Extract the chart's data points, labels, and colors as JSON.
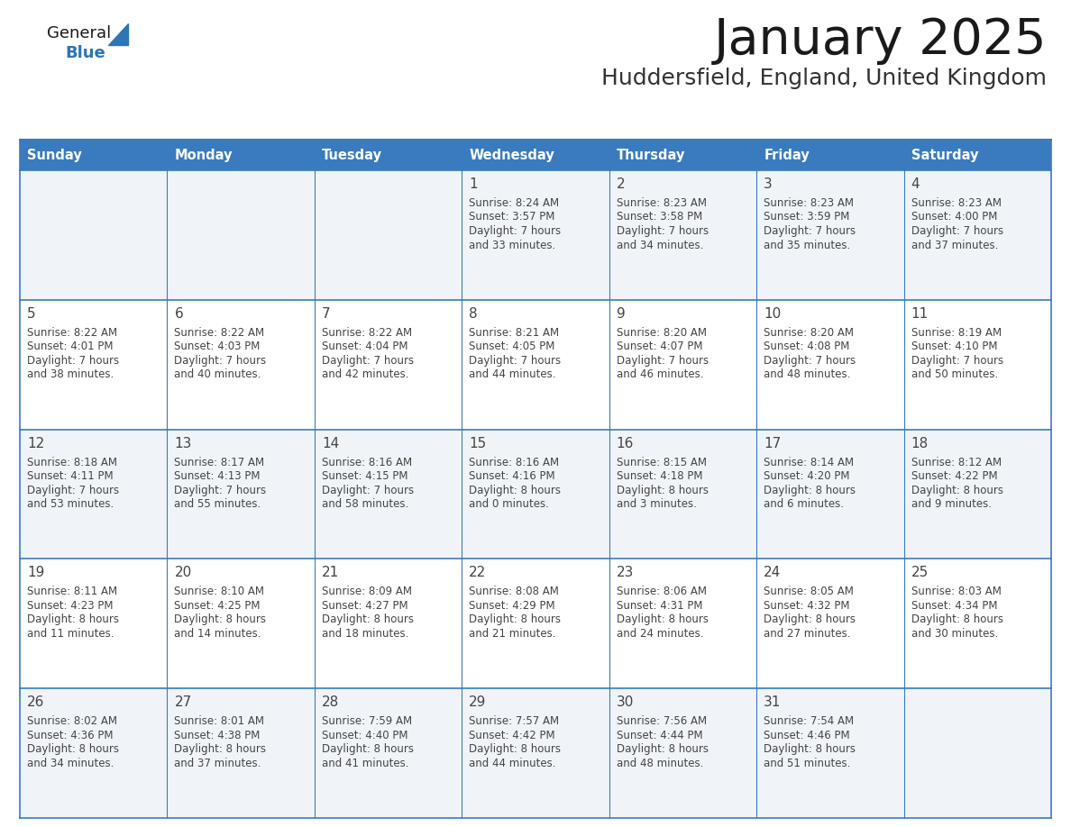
{
  "title": "January 2025",
  "subtitle": "Huddersfield, England, United Kingdom",
  "days_of_week": [
    "Sunday",
    "Monday",
    "Tuesday",
    "Wednesday",
    "Thursday",
    "Friday",
    "Saturday"
  ],
  "header_bg": "#3a7bbf",
  "header_text": "#FFFFFF",
  "row_bg_odd": "#FFFFFF",
  "row_bg_even": "#f0f4f8",
  "border_color": "#3a7bbf",
  "text_color": "#444444",
  "title_color": "#1a1a1a",
  "subtitle_color": "#333333",
  "logo_general_color": "#1a1a1a",
  "logo_blue_color": "#2E75B6",
  "logo_triangle_color": "#2E75B6",
  "calendar_data": [
    [
      null,
      null,
      null,
      {
        "day": 1,
        "sunrise": "8:24 AM",
        "sunset": "3:57 PM",
        "daylight_h": "7 hours",
        "daylight_m": "33 minutes."
      },
      {
        "day": 2,
        "sunrise": "8:23 AM",
        "sunset": "3:58 PM",
        "daylight_h": "7 hours",
        "daylight_m": "34 minutes."
      },
      {
        "day": 3,
        "sunrise": "8:23 AM",
        "sunset": "3:59 PM",
        "daylight_h": "7 hours",
        "daylight_m": "35 minutes."
      },
      {
        "day": 4,
        "sunrise": "8:23 AM",
        "sunset": "4:00 PM",
        "daylight_h": "7 hours",
        "daylight_m": "37 minutes."
      }
    ],
    [
      {
        "day": 5,
        "sunrise": "8:22 AM",
        "sunset": "4:01 PM",
        "daylight_h": "7 hours",
        "daylight_m": "38 minutes."
      },
      {
        "day": 6,
        "sunrise": "8:22 AM",
        "sunset": "4:03 PM",
        "daylight_h": "7 hours",
        "daylight_m": "40 minutes."
      },
      {
        "day": 7,
        "sunrise": "8:22 AM",
        "sunset": "4:04 PM",
        "daylight_h": "7 hours",
        "daylight_m": "42 minutes."
      },
      {
        "day": 8,
        "sunrise": "8:21 AM",
        "sunset": "4:05 PM",
        "daylight_h": "7 hours",
        "daylight_m": "44 minutes."
      },
      {
        "day": 9,
        "sunrise": "8:20 AM",
        "sunset": "4:07 PM",
        "daylight_h": "7 hours",
        "daylight_m": "46 minutes."
      },
      {
        "day": 10,
        "sunrise": "8:20 AM",
        "sunset": "4:08 PM",
        "daylight_h": "7 hours",
        "daylight_m": "48 minutes."
      },
      {
        "day": 11,
        "sunrise": "8:19 AM",
        "sunset": "4:10 PM",
        "daylight_h": "7 hours",
        "daylight_m": "50 minutes."
      }
    ],
    [
      {
        "day": 12,
        "sunrise": "8:18 AM",
        "sunset": "4:11 PM",
        "daylight_h": "7 hours",
        "daylight_m": "53 minutes."
      },
      {
        "day": 13,
        "sunrise": "8:17 AM",
        "sunset": "4:13 PM",
        "daylight_h": "7 hours",
        "daylight_m": "55 minutes."
      },
      {
        "day": 14,
        "sunrise": "8:16 AM",
        "sunset": "4:15 PM",
        "daylight_h": "7 hours",
        "daylight_m": "58 minutes."
      },
      {
        "day": 15,
        "sunrise": "8:16 AM",
        "sunset": "4:16 PM",
        "daylight_h": "8 hours",
        "daylight_m": "0 minutes."
      },
      {
        "day": 16,
        "sunrise": "8:15 AM",
        "sunset": "4:18 PM",
        "daylight_h": "8 hours",
        "daylight_m": "3 minutes."
      },
      {
        "day": 17,
        "sunrise": "8:14 AM",
        "sunset": "4:20 PM",
        "daylight_h": "8 hours",
        "daylight_m": "6 minutes."
      },
      {
        "day": 18,
        "sunrise": "8:12 AM",
        "sunset": "4:22 PM",
        "daylight_h": "8 hours",
        "daylight_m": "9 minutes."
      }
    ],
    [
      {
        "day": 19,
        "sunrise": "8:11 AM",
        "sunset": "4:23 PM",
        "daylight_h": "8 hours",
        "daylight_m": "11 minutes."
      },
      {
        "day": 20,
        "sunrise": "8:10 AM",
        "sunset": "4:25 PM",
        "daylight_h": "8 hours",
        "daylight_m": "14 minutes."
      },
      {
        "day": 21,
        "sunrise": "8:09 AM",
        "sunset": "4:27 PM",
        "daylight_h": "8 hours",
        "daylight_m": "18 minutes."
      },
      {
        "day": 22,
        "sunrise": "8:08 AM",
        "sunset": "4:29 PM",
        "daylight_h": "8 hours",
        "daylight_m": "21 minutes."
      },
      {
        "day": 23,
        "sunrise": "8:06 AM",
        "sunset": "4:31 PM",
        "daylight_h": "8 hours",
        "daylight_m": "24 minutes."
      },
      {
        "day": 24,
        "sunrise": "8:05 AM",
        "sunset": "4:32 PM",
        "daylight_h": "8 hours",
        "daylight_m": "27 minutes."
      },
      {
        "day": 25,
        "sunrise": "8:03 AM",
        "sunset": "4:34 PM",
        "daylight_h": "8 hours",
        "daylight_m": "30 minutes."
      }
    ],
    [
      {
        "day": 26,
        "sunrise": "8:02 AM",
        "sunset": "4:36 PM",
        "daylight_h": "8 hours",
        "daylight_m": "34 minutes."
      },
      {
        "day": 27,
        "sunrise": "8:01 AM",
        "sunset": "4:38 PM",
        "daylight_h": "8 hours",
        "daylight_m": "37 minutes."
      },
      {
        "day": 28,
        "sunrise": "7:59 AM",
        "sunset": "4:40 PM",
        "daylight_h": "8 hours",
        "daylight_m": "41 minutes."
      },
      {
        "day": 29,
        "sunrise": "7:57 AM",
        "sunset": "4:42 PM",
        "daylight_h": "8 hours",
        "daylight_m": "44 minutes."
      },
      {
        "day": 30,
        "sunrise": "7:56 AM",
        "sunset": "4:44 PM",
        "daylight_h": "8 hours",
        "daylight_m": "48 minutes."
      },
      {
        "day": 31,
        "sunrise": "7:54 AM",
        "sunset": "4:46 PM",
        "daylight_h": "8 hours",
        "daylight_m": "51 minutes."
      },
      null
    ]
  ]
}
